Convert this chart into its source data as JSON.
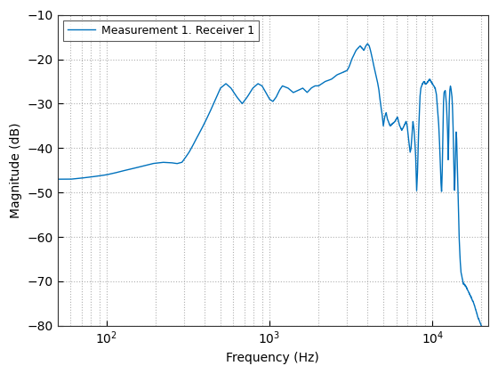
{
  "xlabel": "Frequency (Hz)",
  "ylabel": "Magnitude (dB)",
  "legend_label": "Measurement 1. Receiver 1",
  "line_color": "#0072bd",
  "line_width": 1.0,
  "xlim": [
    50,
    22000
  ],
  "ylim": [
    -80,
    -10
  ],
  "yticks": [
    -80,
    -70,
    -60,
    -50,
    -40,
    -30,
    -20,
    -10
  ],
  "xticks": [
    100,
    1000,
    10000
  ],
  "background_color": "#ffffff",
  "grid_color": "#b0b0b0",
  "grid_style": ":"
}
